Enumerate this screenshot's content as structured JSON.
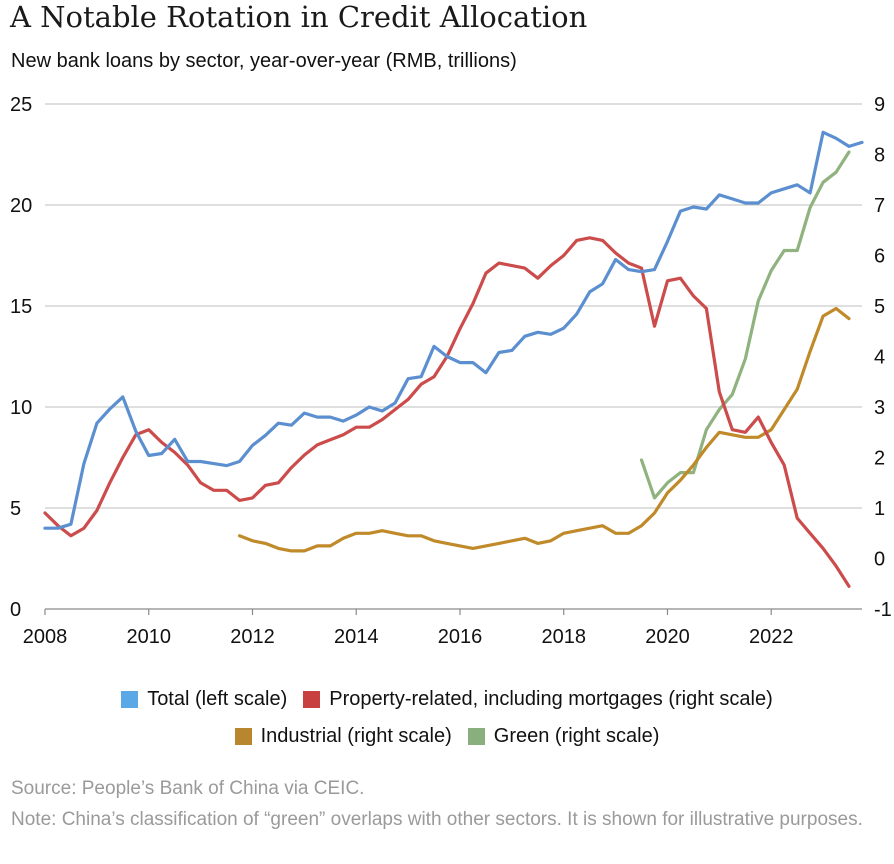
{
  "title": "A Notable Rotation in Credit Allocation",
  "subtitle": "New bank loans by sector, year-over-year (RMB, trillions)",
  "source": "Source: People’s Bank of China via CEIC.",
  "note": "Note: China’s classification of “green” overlaps with other sectors. It is shown for illustrative purposes.",
  "colors": {
    "total": "#5b8fd0",
    "property": "#cc4b4b",
    "industrial": "#c08a2a",
    "green": "#8fb27e",
    "legend_total": "#5aa9e6",
    "legend_property": "#c84040",
    "legend_industrial": "#b8862e",
    "legend_green": "#8aaf7e"
  },
  "chart_data": {
    "type": "line",
    "title": "A Notable Rotation in Credit Allocation",
    "subtitle": "New bank loans by sector, year-over-year (RMB, trillions)",
    "xlim": [
      2008,
      2023.75
    ],
    "x_ticks": [
      "2008",
      "2010",
      "2012",
      "2014",
      "2016",
      "2018",
      "2020",
      "2022"
    ],
    "left_axis": {
      "range": [
        0,
        25
      ],
      "ticks": [
        "0",
        "5",
        "10",
        "15",
        "20",
        "25"
      ]
    },
    "right_axis": {
      "range": [
        -1,
        9
      ],
      "ticks": [
        "-1",
        "0",
        "1",
        "2",
        "3",
        "4",
        "5",
        "6",
        "7",
        "8",
        "9"
      ]
    },
    "grid": "horizontal",
    "legend_position": "bottom",
    "series": [
      {
        "name": "Total (left scale)",
        "axis": "left",
        "color": "#5b8fd0",
        "points": [
          [
            2008.0,
            4.0
          ],
          [
            2008.25,
            4.0
          ],
          [
            2008.5,
            4.2
          ],
          [
            2008.75,
            7.2
          ],
          [
            2009.0,
            9.2
          ],
          [
            2009.25,
            9.9
          ],
          [
            2009.5,
            10.5
          ],
          [
            2009.75,
            8.8
          ],
          [
            2010.0,
            7.6
          ],
          [
            2010.25,
            7.7
          ],
          [
            2010.5,
            8.4
          ],
          [
            2010.75,
            7.3
          ],
          [
            2011.0,
            7.3
          ],
          [
            2011.25,
            7.2
          ],
          [
            2011.5,
            7.1
          ],
          [
            2011.75,
            7.3
          ],
          [
            2012.0,
            8.1
          ],
          [
            2012.25,
            8.6
          ],
          [
            2012.5,
            9.2
          ],
          [
            2012.75,
            9.1
          ],
          [
            2013.0,
            9.7
          ],
          [
            2013.25,
            9.5
          ],
          [
            2013.5,
            9.5
          ],
          [
            2013.75,
            9.3
          ],
          [
            2014.0,
            9.6
          ],
          [
            2014.25,
            10.0
          ],
          [
            2014.5,
            9.8
          ],
          [
            2014.75,
            10.2
          ],
          [
            2015.0,
            11.4
          ],
          [
            2015.25,
            11.5
          ],
          [
            2015.5,
            13.0
          ],
          [
            2015.75,
            12.5
          ],
          [
            2016.0,
            12.2
          ],
          [
            2016.25,
            12.2
          ],
          [
            2016.5,
            11.7
          ],
          [
            2016.75,
            12.7
          ],
          [
            2017.0,
            12.8
          ],
          [
            2017.25,
            13.5
          ],
          [
            2017.5,
            13.7
          ],
          [
            2017.75,
            13.6
          ],
          [
            2018.0,
            13.9
          ],
          [
            2018.25,
            14.6
          ],
          [
            2018.5,
            15.7
          ],
          [
            2018.75,
            16.1
          ],
          [
            2019.0,
            17.3
          ],
          [
            2019.25,
            16.8
          ],
          [
            2019.5,
            16.7
          ],
          [
            2019.75,
            16.8
          ],
          [
            2020.0,
            18.2
          ],
          [
            2020.25,
            19.7
          ],
          [
            2020.5,
            19.9
          ],
          [
            2020.75,
            19.8
          ],
          [
            2021.0,
            20.5
          ],
          [
            2021.25,
            20.3
          ],
          [
            2021.5,
            20.1
          ],
          [
            2021.75,
            20.1
          ],
          [
            2022.0,
            20.6
          ],
          [
            2022.25,
            20.8
          ],
          [
            2022.5,
            21.0
          ],
          [
            2022.75,
            20.6
          ],
          [
            2023.0,
            23.6
          ],
          [
            2023.25,
            23.3
          ],
          [
            2023.5,
            22.9
          ],
          [
            2023.75,
            23.1
          ]
        ]
      },
      {
        "name": "Property-related, including mortgages (right scale)",
        "axis": "right",
        "color": "#cc4b4b",
        "points": [
          [
            2008.0,
            0.9
          ],
          [
            2008.25,
            0.65
          ],
          [
            2008.5,
            0.45
          ],
          [
            2008.75,
            0.6
          ],
          [
            2009.0,
            0.95
          ],
          [
            2009.25,
            1.5
          ],
          [
            2009.5,
            2.0
          ],
          [
            2009.75,
            2.45
          ],
          [
            2010.0,
            2.55
          ],
          [
            2010.25,
            2.3
          ],
          [
            2010.5,
            2.1
          ],
          [
            2010.75,
            1.85
          ],
          [
            2011.0,
            1.5
          ],
          [
            2011.25,
            1.35
          ],
          [
            2011.5,
            1.35
          ],
          [
            2011.75,
            1.15
          ],
          [
            2012.0,
            1.2
          ],
          [
            2012.25,
            1.45
          ],
          [
            2012.5,
            1.5
          ],
          [
            2012.75,
            1.8
          ],
          [
            2013.0,
            2.05
          ],
          [
            2013.25,
            2.25
          ],
          [
            2013.5,
            2.35
          ],
          [
            2013.75,
            2.45
          ],
          [
            2014.0,
            2.6
          ],
          [
            2014.25,
            2.6
          ],
          [
            2014.5,
            2.75
          ],
          [
            2014.75,
            2.95
          ],
          [
            2015.0,
            3.15
          ],
          [
            2015.25,
            3.45
          ],
          [
            2015.5,
            3.6
          ],
          [
            2015.75,
            4.0
          ],
          [
            2016.0,
            4.55
          ],
          [
            2016.25,
            5.05
          ],
          [
            2016.5,
            5.65
          ],
          [
            2016.75,
            5.85
          ],
          [
            2017.0,
            5.8
          ],
          [
            2017.25,
            5.75
          ],
          [
            2017.5,
            5.55
          ],
          [
            2017.75,
            5.8
          ],
          [
            2018.0,
            6.0
          ],
          [
            2018.25,
            6.3
          ],
          [
            2018.5,
            6.35
          ],
          [
            2018.75,
            6.3
          ],
          [
            2019.0,
            6.05
          ],
          [
            2019.25,
            5.85
          ],
          [
            2019.5,
            5.75
          ],
          [
            2019.75,
            4.6
          ],
          [
            2020.0,
            5.5
          ],
          [
            2020.25,
            5.55
          ],
          [
            2020.5,
            5.2
          ],
          [
            2020.75,
            4.95
          ],
          [
            2021.0,
            3.3
          ],
          [
            2021.25,
            2.55
          ],
          [
            2021.5,
            2.5
          ],
          [
            2021.75,
            2.8
          ],
          [
            2022.0,
            2.3
          ],
          [
            2022.25,
            1.85
          ],
          [
            2022.5,
            0.8
          ],
          [
            2022.75,
            0.5
          ],
          [
            2023.0,
            0.2
          ],
          [
            2023.25,
            -0.15
          ],
          [
            2023.5,
            -0.55
          ]
        ]
      },
      {
        "name": "Industrial (right scale)",
        "axis": "right",
        "color": "#c08a2a",
        "points": [
          [
            2011.75,
            0.45
          ],
          [
            2012.0,
            0.35
          ],
          [
            2012.25,
            0.3
          ],
          [
            2012.5,
            0.2
          ],
          [
            2012.75,
            0.15
          ],
          [
            2013.0,
            0.15
          ],
          [
            2013.25,
            0.25
          ],
          [
            2013.5,
            0.25
          ],
          [
            2013.75,
            0.4
          ],
          [
            2014.0,
            0.5
          ],
          [
            2014.25,
            0.5
          ],
          [
            2014.5,
            0.55
          ],
          [
            2014.75,
            0.5
          ],
          [
            2015.0,
            0.45
          ],
          [
            2015.25,
            0.45
          ],
          [
            2015.5,
            0.35
          ],
          [
            2015.75,
            0.3
          ],
          [
            2016.0,
            0.25
          ],
          [
            2016.25,
            0.2
          ],
          [
            2016.5,
            0.25
          ],
          [
            2016.75,
            0.3
          ],
          [
            2017.0,
            0.35
          ],
          [
            2017.25,
            0.4
          ],
          [
            2017.5,
            0.3
          ],
          [
            2017.75,
            0.35
          ],
          [
            2018.0,
            0.5
          ],
          [
            2018.25,
            0.55
          ],
          [
            2018.5,
            0.6
          ],
          [
            2018.75,
            0.65
          ],
          [
            2019.0,
            0.5
          ],
          [
            2019.25,
            0.5
          ],
          [
            2019.5,
            0.65
          ],
          [
            2019.75,
            0.9
          ],
          [
            2020.0,
            1.3
          ],
          [
            2020.25,
            1.55
          ],
          [
            2020.5,
            1.85
          ],
          [
            2020.75,
            2.2
          ],
          [
            2021.0,
            2.5
          ],
          [
            2021.25,
            2.45
          ],
          [
            2021.5,
            2.4
          ],
          [
            2021.75,
            2.4
          ],
          [
            2022.0,
            2.55
          ],
          [
            2022.25,
            2.95
          ],
          [
            2022.5,
            3.35
          ],
          [
            2022.75,
            4.1
          ],
          [
            2023.0,
            4.8
          ],
          [
            2023.25,
            4.95
          ],
          [
            2023.5,
            4.75
          ]
        ]
      },
      {
        "name": "Green (right scale)",
        "axis": "right",
        "color": "#8fb27e",
        "points": [
          [
            2019.5,
            1.95
          ],
          [
            2019.75,
            1.2
          ],
          [
            2020.0,
            1.5
          ],
          [
            2020.25,
            1.7
          ],
          [
            2020.5,
            1.7
          ],
          [
            2020.75,
            2.55
          ],
          [
            2021.0,
            2.95
          ],
          [
            2021.25,
            3.25
          ],
          [
            2021.5,
            3.95
          ],
          [
            2021.75,
            5.1
          ],
          [
            2022.0,
            5.7
          ],
          [
            2022.25,
            6.1
          ],
          [
            2022.5,
            6.1
          ],
          [
            2022.75,
            6.95
          ],
          [
            2023.0,
            7.45
          ],
          [
            2023.25,
            7.65
          ],
          [
            2023.5,
            8.05
          ]
        ]
      }
    ]
  }
}
